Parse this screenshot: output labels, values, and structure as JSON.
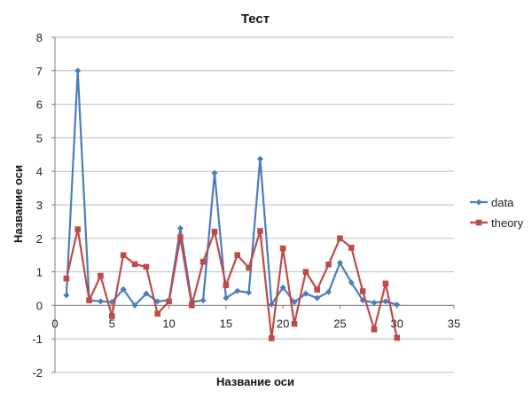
{
  "chart_data": {
    "type": "line",
    "title": "Тест",
    "xlabel": "Название оси",
    "ylabel": "Название оси",
    "xlim": [
      0,
      35
    ],
    "ylim": [
      -2,
      8
    ],
    "x_ticks": [
      0,
      5,
      10,
      15,
      20,
      25,
      30,
      35
    ],
    "y_ticks": [
      -2,
      -1,
      0,
      1,
      2,
      3,
      4,
      5,
      6,
      7,
      8
    ],
    "grid": "horizontal",
    "legend_position": "right",
    "x": [
      1,
      2,
      3,
      4,
      5,
      6,
      7,
      8,
      9,
      10,
      11,
      12,
      13,
      14,
      15,
      16,
      17,
      18,
      19,
      20,
      21,
      22,
      23,
      24,
      25,
      26,
      27,
      28,
      29,
      30
    ],
    "series": [
      {
        "name": "data",
        "color": "#4A7EBB",
        "marker": "diamond",
        "values": [
          0.3,
          7.0,
          0.15,
          0.12,
          0.1,
          0.48,
          0.0,
          0.35,
          0.12,
          0.15,
          2.3,
          0.1,
          0.15,
          3.95,
          0.22,
          0.43,
          0.38,
          4.37,
          0.03,
          0.53,
          0.1,
          0.35,
          0.22,
          0.4,
          1.27,
          0.68,
          0.15,
          0.08,
          0.12,
          0.02
        ]
      },
      {
        "name": "theory",
        "color": "#BE4B48",
        "marker": "square",
        "values": [
          0.8,
          2.27,
          0.15,
          0.88,
          -0.32,
          1.5,
          1.23,
          1.15,
          -0.25,
          0.12,
          2.03,
          0.0,
          1.3,
          2.2,
          0.6,
          1.5,
          1.12,
          2.22,
          -0.98,
          1.7,
          -0.55,
          1.0,
          0.47,
          1.22,
          2.0,
          1.72,
          0.42,
          -0.72,
          0.65,
          -0.97
        ]
      }
    ]
  }
}
